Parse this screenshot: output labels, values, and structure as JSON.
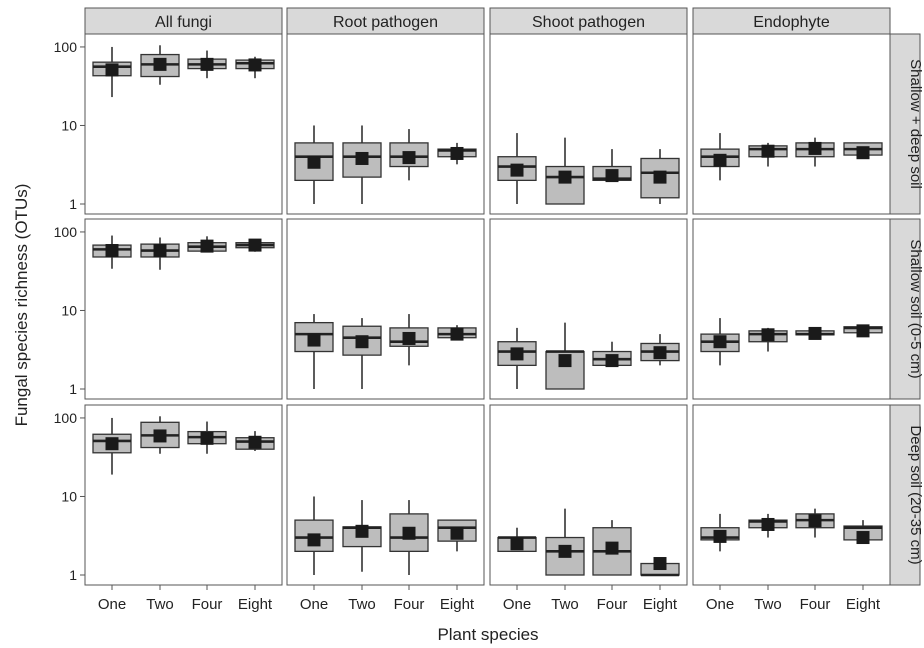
{
  "chart_data": {
    "type": "box",
    "y_label": "Fungal species richness (OTUs)",
    "x_label": "Plant species",
    "y_scale": "log10",
    "y_range": [
      1,
      130
    ],
    "y_ticks": [
      1,
      10,
      100
    ],
    "y_tick_labels": [
      "1",
      "10",
      "100"
    ],
    "categories": [
      "One",
      "Two",
      "Four",
      "Eight"
    ],
    "columns": [
      "All fungi",
      "Root pathogen",
      "Shoot pathogen",
      "Endophyte"
    ],
    "rows": [
      "Shallow + deep soil",
      "Shallow soil (0-5 cm)",
      "Deep soil (20-35 cm)"
    ],
    "box_fill": "#bdbdbd",
    "strip_fill": "#d9d9d9",
    "panels": [
      [
        [
          {
            "min": 23,
            "q1": 43,
            "median": 56,
            "q3": 64,
            "max": 100,
            "mean": 51
          },
          {
            "min": 33,
            "q1": 42,
            "median": 60,
            "q3": 80,
            "max": 105,
            "mean": 60
          },
          {
            "min": 40,
            "q1": 53,
            "median": 60,
            "q3": 70,
            "max": 90,
            "mean": 60
          },
          {
            "min": 40,
            "q1": 53,
            "median": 62,
            "q3": 68,
            "max": 75,
            "mean": 59
          }
        ],
        [
          {
            "min": 1,
            "q1": 2,
            "median": 4,
            "q3": 6,
            "max": 10,
            "mean": 3.4
          },
          {
            "min": 1,
            "q1": 2.2,
            "median": 4,
            "q3": 6,
            "max": 10,
            "mean": 3.8
          },
          {
            "min": 2,
            "q1": 3,
            "median": 4,
            "q3": 6,
            "max": 9,
            "mean": 3.9
          },
          {
            "min": 3.2,
            "q1": 4,
            "median": 4.8,
            "q3": 5,
            "max": 6,
            "mean": 4.4
          }
        ],
        [
          {
            "min": 1,
            "q1": 2,
            "median": 3,
            "q3": 4,
            "max": 8,
            "mean": 2.7
          },
          {
            "min": 1,
            "q1": 1,
            "median": 2.2,
            "q3": 3,
            "max": 7,
            "mean": 2.2
          },
          {
            "min": 2,
            "q1": 2,
            "median": 2.1,
            "q3": 3,
            "max": 5,
            "mean": 2.3
          },
          {
            "min": 1,
            "q1": 1.2,
            "median": 2.5,
            "q3": 3.8,
            "max": 5,
            "mean": 2.2
          }
        ],
        [
          {
            "min": 2,
            "q1": 3,
            "median": 4,
            "q3": 5,
            "max": 8,
            "mean": 3.6
          },
          {
            "min": 3,
            "q1": 4,
            "median": 5,
            "q3": 5.5,
            "max": 6,
            "mean": 4.7
          },
          {
            "min": 3,
            "q1": 4,
            "median": 5,
            "q3": 6,
            "max": 7,
            "mean": 5.1
          },
          {
            "min": 4,
            "q1": 4.2,
            "median": 5,
            "q3": 6,
            "max": 6,
            "mean": 4.5
          }
        ]
      ],
      [
        [
          {
            "min": 34,
            "q1": 48,
            "median": 60,
            "q3": 68,
            "max": 90,
            "mean": 58
          },
          {
            "min": 33,
            "q1": 48,
            "median": 58,
            "q3": 70,
            "max": 85,
            "mean": 58
          },
          {
            "min": 55,
            "q1": 57,
            "median": 65,
            "q3": 73,
            "max": 88,
            "mean": 66
          },
          {
            "min": 56,
            "q1": 63,
            "median": 68,
            "q3": 73,
            "max": 78,
            "mean": 68
          }
        ],
        [
          {
            "min": 1,
            "q1": 3,
            "median": 5,
            "q3": 7,
            "max": 9,
            "mean": 4.2
          },
          {
            "min": 1,
            "q1": 2.7,
            "median": 4.5,
            "q3": 6.3,
            "max": 8,
            "mean": 4
          },
          {
            "min": 2,
            "q1": 3.5,
            "median": 4,
            "q3": 6,
            "max": 9,
            "mean": 4.4
          },
          {
            "min": 4.2,
            "q1": 4.5,
            "median": 5,
            "q3": 6,
            "max": 6.5,
            "mean": 5
          }
        ],
        [
          {
            "min": 1,
            "q1": 2,
            "median": 3,
            "q3": 4,
            "max": 6,
            "mean": 2.8
          },
          {
            "min": 1,
            "q1": 1,
            "median": 3,
            "q3": 3,
            "max": 7,
            "mean": 2.3
          },
          {
            "min": 2,
            "q1": 2,
            "median": 2.4,
            "q3": 3,
            "max": 4,
            "mean": 2.3
          },
          {
            "min": 2,
            "q1": 2.3,
            "median": 3,
            "q3": 3.8,
            "max": 5,
            "mean": 2.9
          }
        ],
        [
          {
            "min": 2,
            "q1": 3,
            "median": 4,
            "q3": 5,
            "max": 8,
            "mean": 4
          },
          {
            "min": 3,
            "q1": 4,
            "median": 5,
            "q3": 5.5,
            "max": 6,
            "mean": 4.9
          },
          {
            "min": 4.7,
            "q1": 4.9,
            "median": 5,
            "q3": 5.5,
            "max": 5.8,
            "mean": 5.1
          },
          {
            "min": 5,
            "q1": 5.2,
            "median": 6,
            "q3": 6.2,
            "max": 6.5,
            "mean": 5.5
          }
        ]
      ],
      [
        [
          {
            "min": 19,
            "q1": 36,
            "median": 51,
            "q3": 62,
            "max": 100,
            "mean": 47
          },
          {
            "min": 35,
            "q1": 42,
            "median": 60,
            "q3": 88,
            "max": 105,
            "mean": 59
          },
          {
            "min": 35,
            "q1": 47,
            "median": 57,
            "q3": 67,
            "max": 90,
            "mean": 55
          },
          {
            "min": 38,
            "q1": 40,
            "median": 50,
            "q3": 56,
            "max": 68,
            "mean": 49
          }
        ],
        [
          {
            "min": 1,
            "q1": 2,
            "median": 3,
            "q3": 5,
            "max": 10,
            "mean": 2.8
          },
          {
            "min": 1.1,
            "q1": 2.3,
            "median": 4,
            "q3": 4.1,
            "max": 9,
            "mean": 3.6
          },
          {
            "min": 1,
            "q1": 2,
            "median": 3,
            "q3": 6,
            "max": 9,
            "mean": 3.4
          },
          {
            "min": 2,
            "q1": 2.7,
            "median": 4,
            "q3": 5,
            "max": 5,
            "mean": 3.4
          }
        ],
        [
          {
            "min": 2,
            "q1": 2,
            "median": 3,
            "q3": 3,
            "max": 4,
            "mean": 2.5
          },
          {
            "min": 1,
            "q1": 1,
            "median": 2,
            "q3": 3,
            "max": 7,
            "mean": 2
          },
          {
            "min": 1,
            "q1": 1,
            "median": 2,
            "q3": 4,
            "max": 5,
            "mean": 2.2
          },
          {
            "min": 1,
            "q1": 1,
            "median": 1,
            "q3": 1.4,
            "max": 1.6,
            "mean": 1.4
          }
        ],
        [
          {
            "min": 2,
            "q1": 2.8,
            "median": 3,
            "q3": 4,
            "max": 6,
            "mean": 3.1
          },
          {
            "min": 3,
            "q1": 4,
            "median": 4.8,
            "q3": 5,
            "max": 6,
            "mean": 4.4
          },
          {
            "min": 3,
            "q1": 4,
            "median": 5,
            "q3": 6,
            "max": 7,
            "mean": 4.9
          },
          {
            "min": 2.5,
            "q1": 2.8,
            "median": 4,
            "q3": 4.2,
            "max": 5,
            "mean": 3
          }
        ]
      ]
    ]
  }
}
